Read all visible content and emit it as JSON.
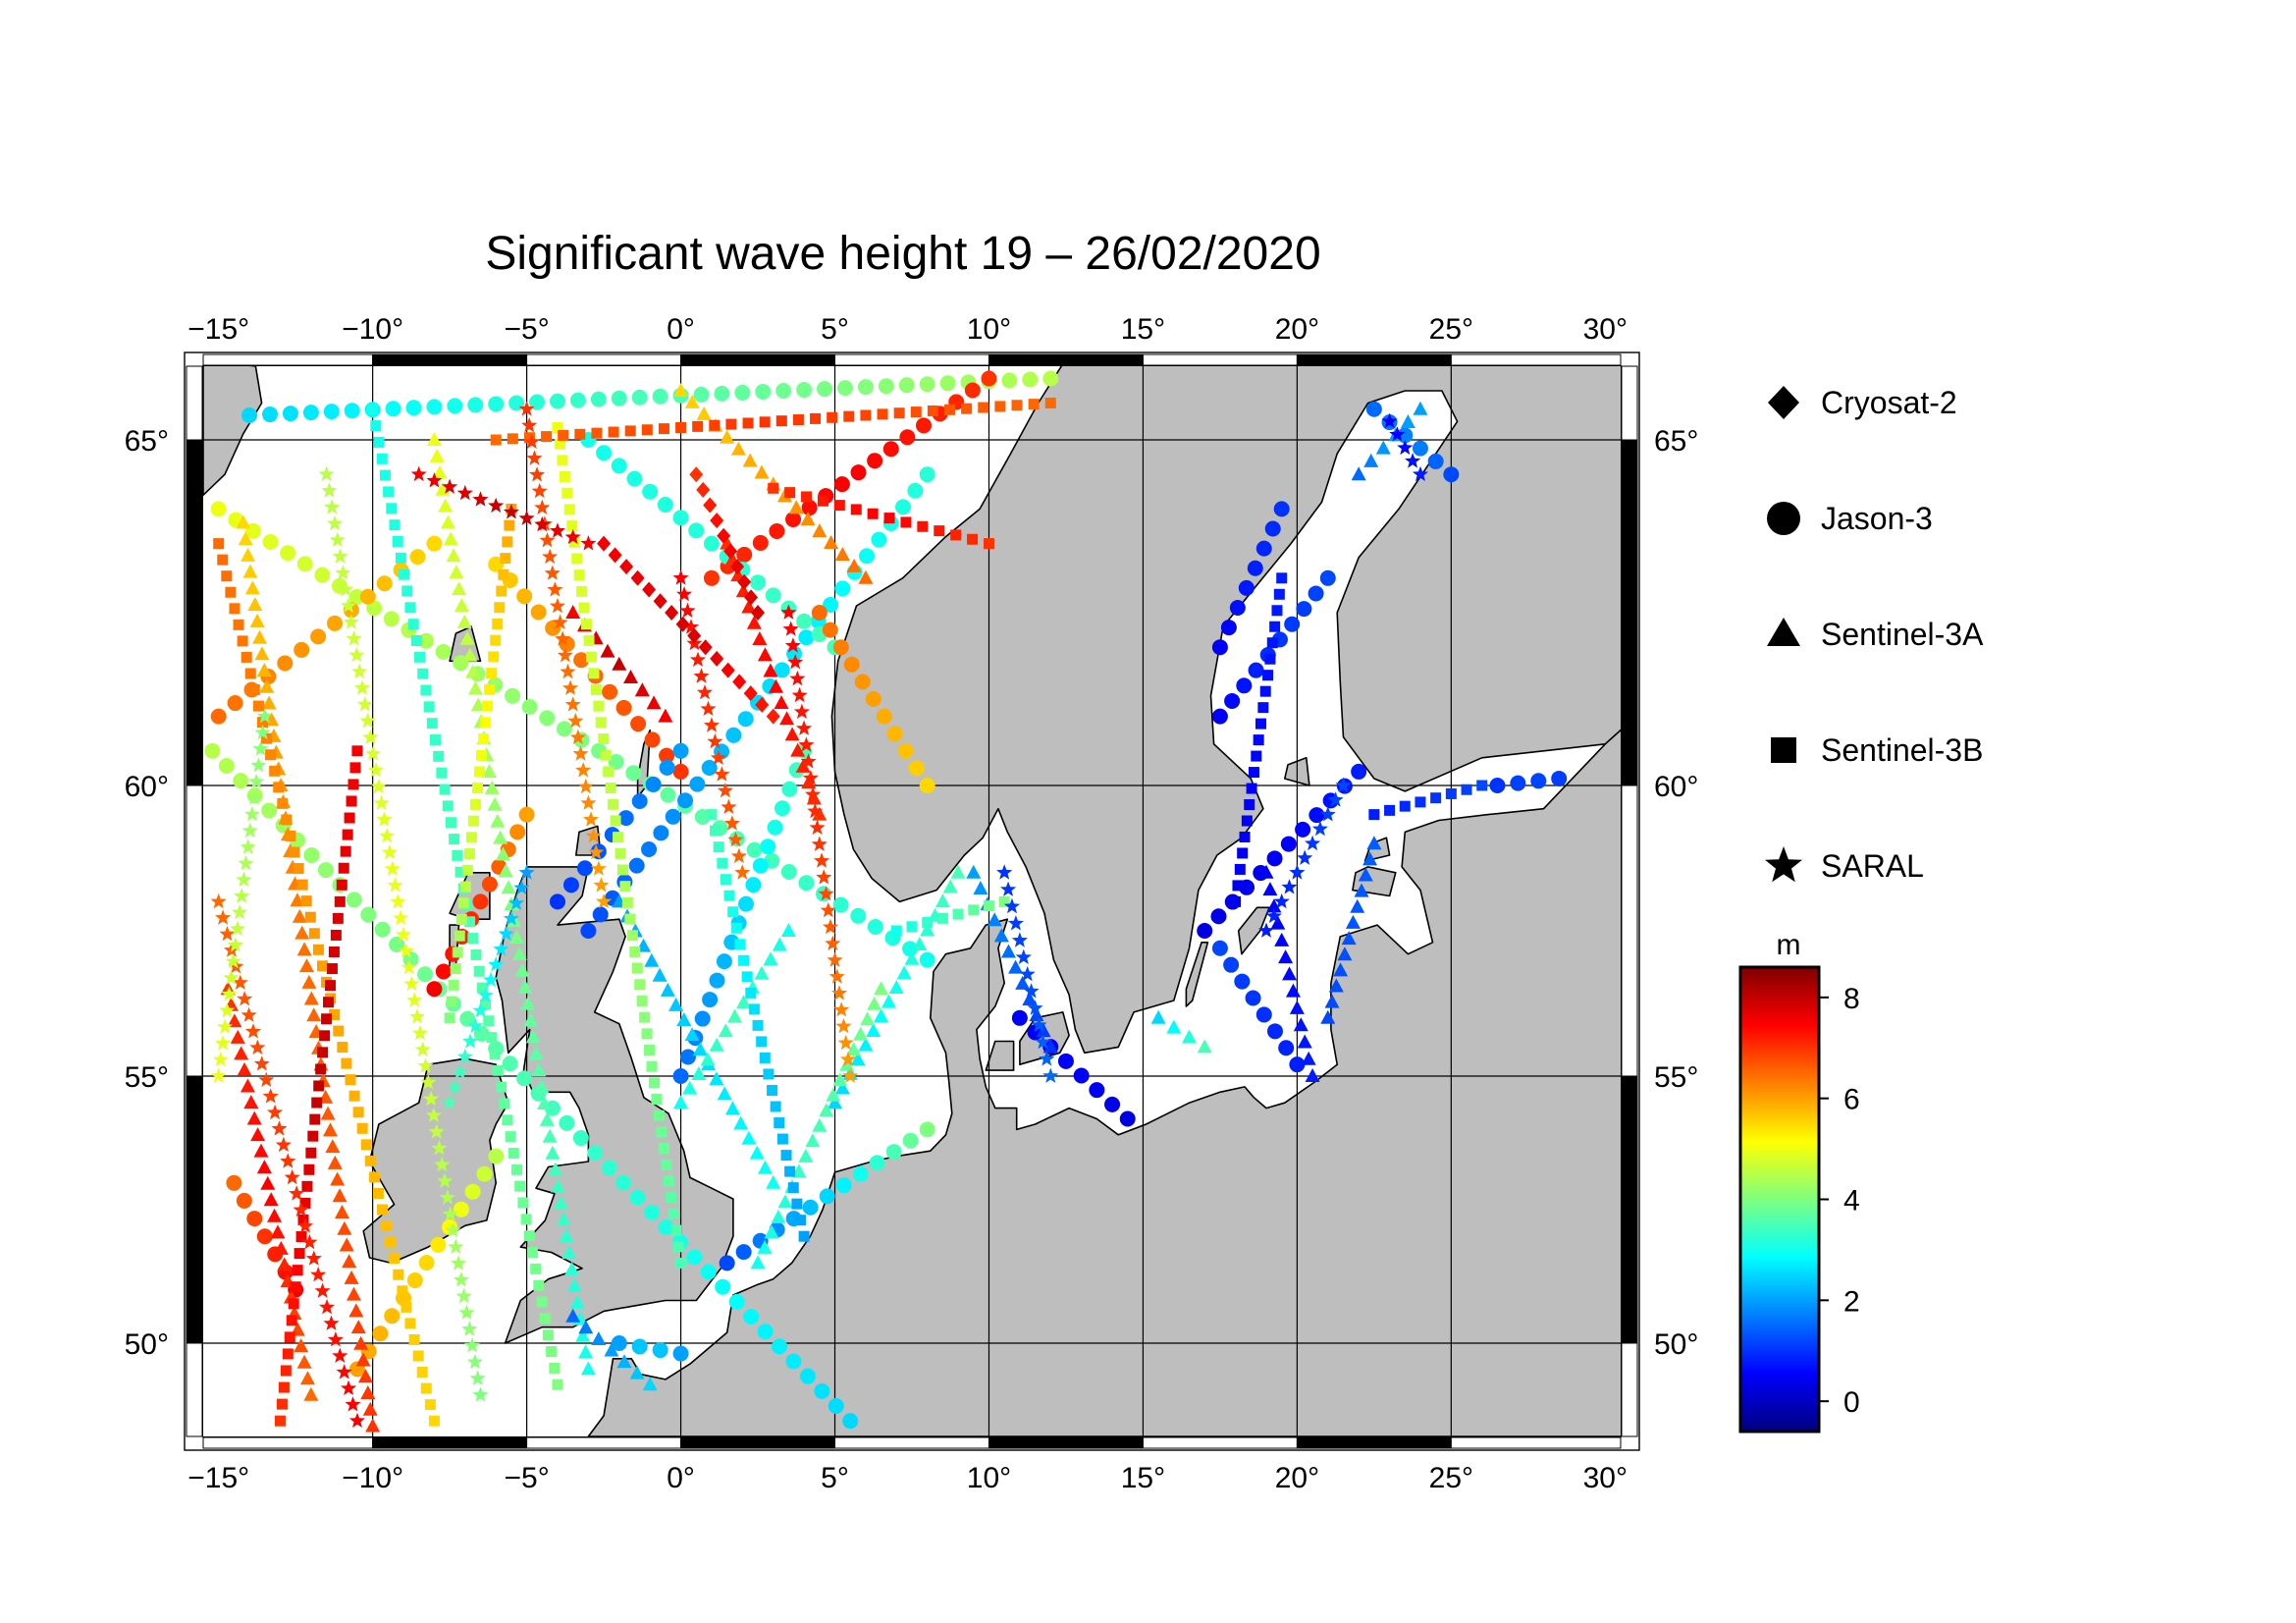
{
  "title": "Significant wave height 19 – 26/02/2020",
  "lon_ticks": [
    "−15°",
    "−10°",
    "−5°",
    "0°",
    "5°",
    "10°",
    "15°",
    "20°",
    "25°",
    "30°"
  ],
  "lat_ticks": [
    "65°",
    "60°",
    "55°",
    "50°"
  ],
  "legend": {
    "items": [
      {
        "label": "Cryosat-2",
        "symbol": "diamond"
      },
      {
        "label": "Jason-3",
        "symbol": "circle"
      },
      {
        "label": "Sentinel-3A",
        "symbol": "triangle"
      },
      {
        "label": "Sentinel-3B",
        "symbol": "square"
      },
      {
        "label": "SARAL",
        "symbol": "star"
      }
    ]
  },
  "colorbar": {
    "unit": "m",
    "range": [
      -0.6,
      8.6
    ],
    "ticks": [
      "8",
      "6",
      "4",
      "2",
      "0"
    ],
    "colors": [
      "#00007f",
      "#0000ff",
      "#007fff",
      "#00ffff",
      "#7fff7f",
      "#ffff00",
      "#ff7f00",
      "#ff0000",
      "#7f0000"
    ]
  },
  "map": {
    "lon_range": [
      -15.5,
      30.5
    ],
    "lat_range": [
      48.2,
      66.2
    ],
    "land_color": "#bebebe",
    "sea_color": "#ffffff"
  },
  "chart_data": {
    "type": "scatter",
    "title": "Significant wave height 19 – 26/02/2020",
    "xlabel": "",
    "ylabel": "",
    "xlim": [
      -15.5,
      30.5
    ],
    "ylim": [
      48.2,
      66.2
    ],
    "value_unit": "m",
    "series": [
      {
        "name": "Jason-3",
        "tracks": [
          {
            "from": [
              -15.2,
              60.5
            ],
            "to": [
              5.5,
              48.5
            ],
            "hs": [
              4.5,
              3.5,
              2.5
            ]
          },
          {
            "from": [
              -15,
              64
            ],
            "to": [
              8,
              57
            ],
            "hs": [
              5,
              4,
              3
            ]
          },
          {
            "from": [
              -14,
              65.4
            ],
            "to": [
              12,
              66.0
            ],
            "hs": [
              2.5,
              3.5,
              4.5
            ]
          },
          {
            "from": [
              -8,
              63.5
            ],
            "to": [
              -15,
              61
            ],
            "hs": [
              5.5,
              6,
              6.5
            ]
          },
          {
            "from": [
              1,
              63
            ],
            "to": [
              10,
              66
            ],
            "hs": [
              7,
              7.5,
              7
            ]
          },
          {
            "from": [
              -3,
              57.5
            ],
            "to": [
              8,
              64.5
            ],
            "hs": [
              1.2,
              2.5,
              3.2
            ]
          },
          {
            "from": [
              -3,
              65
            ],
            "to": [
              5,
              62
            ],
            "hs": [
              3,
              3.2,
              3.5
            ]
          },
          {
            "from": [
              -6,
              63.2
            ],
            "to": [
              0,
              60.2
            ],
            "hs": [
              5.5,
              6.5,
              7
            ]
          },
          {
            "from": [
              0,
              55
            ],
            "to": [
              4,
              60.5
            ],
            "hs": [
              1.5,
              2.5,
              3.5
            ]
          },
          {
            "from": [
              1.5,
              51.5
            ],
            "to": [
              8,
              54
            ],
            "hs": [
              1.2,
              2.5,
              4
            ]
          },
          {
            "from": [
              -4,
              58
            ],
            "to": [
              0,
              60.5
            ],
            "hs": [
              1,
              1.5,
              2
            ]
          },
          {
            "from": [
              -2,
              50
            ],
            "to": [
              0,
              49.8
            ],
            "hs": [
              2,
              2.5,
              2
            ]
          },
          {
            "from": [
              17,
              57.5
            ],
            "to": [
              22,
              60.2
            ],
            "hs": [
              0.3,
              0.5,
              0.8
            ]
          },
          {
            "from": [
              17.5,
              61
            ],
            "to": [
              21,
              63
            ],
            "hs": [
              0.5,
              1,
              1.2
            ]
          },
          {
            "from": [
              17.5,
              62
            ],
            "to": [
              19.5,
              64
            ],
            "hs": [
              0.5,
              0.8,
              1
            ]
          },
          {
            "from": [
              22.5,
              65.5
            ],
            "to": [
              25,
              64.5
            ],
            "hs": [
              1.5,
              1.8,
              1.2
            ]
          },
          {
            "from": [
              26.5,
              60
            ],
            "to": [
              28.5,
              60.1
            ],
            "hs": [
              1,
              1.2,
              1.1
            ]
          },
          {
            "from": [
              11,
              56
            ],
            "to": [
              14.5,
              54.2
            ],
            "hs": [
              0.5,
              0.5,
              0.3
            ]
          },
          {
            "from": [
              20,
              55.2
            ],
            "to": [
              17.5,
              57.2
            ],
            "hs": [
              0.8,
              1,
              1.2
            ]
          },
          {
            "from": [
              -14.5,
              53
            ],
            "to": [
              -12.5,
              51
            ],
            "hs": [
              6.5,
              7,
              7.5
            ]
          },
          {
            "from": [
              -8,
              56.5
            ],
            "to": [
              -5,
              59.5
            ],
            "hs": [
              7.5,
              7,
              6
            ]
          },
          {
            "from": [
              4.5,
              62.5
            ],
            "to": [
              8,
              60
            ],
            "hs": [
              6.5,
              6,
              5.5
            ]
          },
          {
            "from": [
              -10.5,
              49.5
            ],
            "to": [
              -6,
              53.5
            ],
            "hs": [
              6,
              5.5,
              4.5
            ]
          }
        ]
      },
      {
        "name": "Sentinel-3A",
        "tracks": [
          {
            "from": [
              -14.2,
              63.8
            ],
            "to": [
              -10,
              48.4
            ],
            "hs": [
              5.5,
              6.5,
              7
            ]
          },
          {
            "from": [
              -8,
              65
            ],
            "to": [
              -3,
              49.5
            ],
            "hs": [
              5,
              4,
              3
            ]
          },
          {
            "from": [
              -2,
              58
            ],
            "to": [
              3,
              53
            ],
            "hs": [
              2,
              2.5,
              3
            ]
          },
          {
            "from": [
              5,
              54.5
            ],
            "to": [
              9,
              58.5
            ],
            "hs": [
              2.5,
              3,
              3.5
            ]
          },
          {
            "from": [
              3.5,
              57.5
            ],
            "to": [
              0,
              54.5
            ],
            "hs": [
              3,
              3.5,
              3
            ]
          },
          {
            "from": [
              6.5,
              56.5
            ],
            "to": [
              2.5,
              51.5
            ],
            "hs": [
              4,
              3.5,
              3
            ]
          },
          {
            "from": [
              1.5,
              63.5
            ],
            "to": [
              4.5,
              59.5
            ],
            "hs": [
              7,
              7.5,
              7
            ]
          },
          {
            "from": [
              -14.7,
              56.5
            ],
            "to": [
              -12,
              49
            ],
            "hs": [
              7,
              7.5,
              6.5
            ]
          },
          {
            "from": [
              9.5,
              58.5
            ],
            "to": [
              12,
              55.5
            ],
            "hs": [
              2,
              1.5,
              1
            ]
          },
          {
            "from": [
              19,
              58.5
            ],
            "to": [
              20.5,
              55
            ],
            "hs": [
              0.5,
              0.6,
              0.8
            ]
          },
          {
            "from": [
              21,
              56
            ],
            "to": [
              22.5,
              59
            ],
            "hs": [
              1.2,
              1.3,
              1.4
            ]
          },
          {
            "from": [
              22,
              64.5
            ],
            "to": [
              24,
              65.5
            ],
            "hs": [
              1.5,
              2,
              2
            ]
          },
          {
            "from": [
              15.5,
              56
            ],
            "to": [
              17,
              55.5
            ],
            "hs": [
              2.5,
              3,
              3.5
            ]
          },
          {
            "from": [
              -3.5,
              50.5
            ],
            "to": [
              -1,
              49.2
            ],
            "hs": [
              1.5,
              2,
              2.5
            ]
          },
          {
            "from": [
              0,
              65.8
            ],
            "to": [
              6,
              63
            ],
            "hs": [
              5.5,
              6,
              6.5
            ]
          },
          {
            "from": [
              -3.5,
              62.5
            ],
            "to": [
              -0.5,
              61
            ],
            "hs": [
              7.5,
              8,
              7.5
            ]
          }
        ]
      },
      {
        "name": "Sentinel-3B",
        "tracks": [
          {
            "from": [
              -15,
              63.5
            ],
            "to": [
              -8,
              48.5
            ],
            "hs": [
              6.5,
              6,
              5.5
            ]
          },
          {
            "from": [
              -10.5,
              60.5
            ],
            "to": [
              -13,
              48.5
            ],
            "hs": [
              7.5,
              8,
              7
            ]
          },
          {
            "from": [
              -10,
              65.5
            ],
            "to": [
              -4,
              49.2
            ],
            "hs": [
              3,
              3.5,
              4
            ]
          },
          {
            "from": [
              -4,
              65.2
            ],
            "to": [
              0,
              51.5
            ],
            "hs": [
              5,
              4.5,
              3.5
            ]
          },
          {
            "from": [
              1,
              59.5
            ],
            "to": [
              4,
              52
            ],
            "hs": [
              3.5,
              2.5,
              2
            ]
          },
          {
            "from": [
              -5.5,
              64
            ],
            "to": [
              -7.5,
              56
            ],
            "hs": [
              6,
              5,
              4
            ]
          },
          {
            "from": [
              7,
              57.5
            ],
            "to": [
              10.5,
              58
            ],
            "hs": [
              3,
              3.5,
              4
            ]
          },
          {
            "from": [
              18,
              58
            ],
            "to": [
              19.5,
              63
            ],
            "hs": [
              0.4,
              0.6,
              0.8
            ]
          },
          {
            "from": [
              22.5,
              59.5
            ],
            "to": [
              26,
              60
            ],
            "hs": [
              0.8,
              1,
              1.2
            ]
          },
          {
            "from": [
              -6,
              65
            ],
            "to": [
              12,
              65.6
            ],
            "hs": [
              6.5,
              7,
              6.5
            ]
          },
          {
            "from": [
              3,
              64.3
            ],
            "to": [
              10,
              63.5
            ],
            "hs": [
              7,
              7.5,
              7
            ]
          }
        ]
      },
      {
        "name": "SARAL",
        "tracks": [
          {
            "from": [
              -15,
              58
            ],
            "to": [
              -10.5,
              48.5
            ],
            "hs": [
              6.5,
              7,
              7.5
            ]
          },
          {
            "from": [
              -11.5,
              64.5
            ],
            "to": [
              -6.5,
              49
            ],
            "hs": [
              4.5,
              5,
              4
            ]
          },
          {
            "from": [
              -5,
              65.5
            ],
            "to": [
              -2.5,
              58
            ],
            "hs": [
              7,
              6.5,
              6
            ]
          },
          {
            "from": [
              0,
              63
            ],
            "to": [
              2,
              58.5
            ],
            "hs": [
              7.5,
              7,
              6.5
            ]
          },
          {
            "from": [
              3.5,
              62.5
            ],
            "to": [
              5.5,
              55
            ],
            "hs": [
              7.5,
              7,
              6
            ]
          },
          {
            "from": [
              -5,
              58.5
            ],
            "to": [
              -7.5,
              54.5
            ],
            "hs": [
              2,
              3,
              3.5
            ]
          },
          {
            "from": [
              -13.5,
              61
            ],
            "to": [
              -15,
              55
            ],
            "hs": [
              4,
              4.5,
              5
            ]
          },
          {
            "from": [
              10.5,
              58.5
            ],
            "to": [
              12,
              55
            ],
            "hs": [
              1,
              1.2,
              1.5
            ]
          },
          {
            "from": [
              19,
              57.5
            ],
            "to": [
              21.5,
              60
            ],
            "hs": [
              0.8,
              1,
              1.2
            ]
          },
          {
            "from": [
              23,
              65.3
            ],
            "to": [
              24,
              64.5
            ],
            "hs": [
              0.5,
              0.6,
              0.8
            ]
          },
          {
            "from": [
              -8.5,
              64.5
            ],
            "to": [
              -3,
              63.5
            ],
            "hs": [
              7.5,
              8,
              7.5
            ]
          }
        ]
      },
      {
        "name": "Cryosat-2",
        "tracks": [
          {
            "from": [
              -2.5,
              63.5
            ],
            "to": [
              3,
              61
            ],
            "hs": [
              7.5,
              7.8,
              7.2
            ]
          },
          {
            "from": [
              0.5,
              64.5
            ],
            "to": [
              2.5,
              62.5
            ],
            "hs": [
              7,
              7.5,
              7.8
            ]
          }
        ]
      }
    ]
  }
}
